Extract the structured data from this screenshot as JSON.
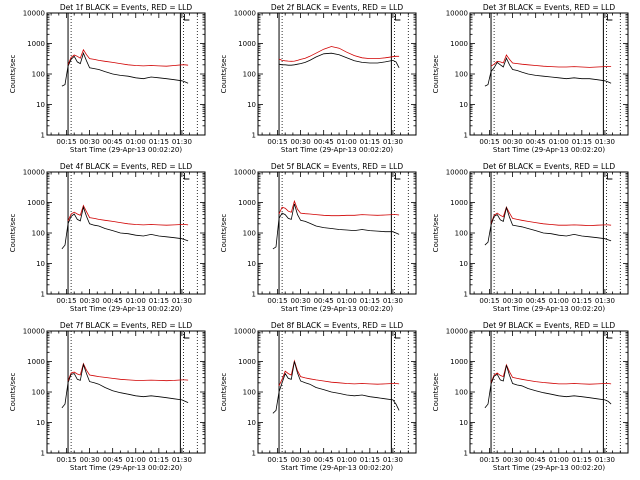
{
  "chart_data": {
    "type": "line",
    "layout": "3x3 grid",
    "yscale": "log",
    "ylim": [
      1,
      10000
    ],
    "yticks": [
      "1",
      "10",
      "100",
      "1000",
      "10000"
    ],
    "ylabel": "Counts/sec",
    "xlabel": "Start Time (29-Apr-13 00:02:20)",
    "xlim": [
      2.33,
      105
    ],
    "xticks": [
      {
        "label": "00:15",
        "minutes": 15
      },
      {
        "label": "00:30",
        "minutes": 30
      },
      {
        "label": "00:45",
        "minutes": 45
      },
      {
        "label": "01:00",
        "minutes": 60
      },
      {
        "label": "01:15",
        "minutes": 75
      },
      {
        "label": "01:30",
        "minutes": 90
      }
    ],
    "vlines_solid": [
      16,
      89
    ],
    "vlines_dotted": [
      18,
      91,
      100
    ],
    "series_colors": {
      "events": "#000000",
      "lld": "#d00000"
    },
    "x_minutes": [
      12,
      14,
      16,
      18,
      20,
      22,
      24,
      26,
      28,
      30,
      33,
      36,
      40,
      45,
      50,
      55,
      60,
      65,
      70,
      75,
      80,
      85,
      90,
      92,
      94
    ],
    "panels": [
      {
        "title": "Det 1f BLACK = Events, RED = LLD",
        "events": [
          40,
          45,
          180,
          300,
          380,
          250,
          220,
          480,
          270,
          160,
          150,
          140,
          120,
          100,
          90,
          85,
          75,
          70,
          80,
          75,
          70,
          65,
          60,
          55,
          50
        ],
        "lld": [
          null,
          null,
          200,
          350,
          420,
          380,
          330,
          620,
          430,
          320,
          300,
          280,
          260,
          240,
          220,
          200,
          190,
          185,
          190,
          185,
          180,
          190,
          200,
          200,
          195
        ]
      },
      {
        "title": "Det 2f BLACK = Events, RED = LLD",
        "events": [
          null,
          null,
          210,
          200,
          200,
          195,
          195,
          200,
          210,
          220,
          240,
          280,
          360,
          460,
          480,
          430,
          340,
          270,
          240,
          230,
          230,
          250,
          280,
          250,
          160
        ],
        "lld": [
          null,
          null,
          310,
          280,
          270,
          265,
          260,
          265,
          280,
          300,
          330,
          380,
          480,
          650,
          800,
          700,
          520,
          400,
          340,
          320,
          320,
          340,
          370,
          380,
          380
        ]
      },
      {
        "title": "Det 3f BLACK = Events, RED = LLD",
        "events": [
          40,
          45,
          120,
          160,
          240,
          200,
          170,
          330,
          200,
          140,
          130,
          115,
          100,
          90,
          85,
          80,
          75,
          70,
          75,
          70,
          70,
          65,
          60,
          55,
          50
        ],
        "lld": [
          null,
          null,
          180,
          210,
          260,
          250,
          230,
          420,
          300,
          230,
          220,
          210,
          200,
          190,
          180,
          175,
          170,
          170,
          175,
          170,
          165,
          170,
          175,
          175,
          175
        ]
      },
      {
        "title": "Det 4f BLACK = Events, RED = LLD",
        "events": [
          30,
          40,
          200,
          350,
          420,
          280,
          250,
          700,
          350,
          200,
          180,
          170,
          140,
          120,
          100,
          95,
          85,
          80,
          90,
          80,
          75,
          70,
          65,
          60,
          55
        ],
        "lld": [
          null,
          null,
          250,
          420,
          480,
          420,
          380,
          800,
          500,
          320,
          300,
          280,
          260,
          240,
          220,
          200,
          190,
          185,
          190,
          185,
          180,
          185,
          190,
          190,
          185
        ]
      },
      {
        "title": "Det 5f BLACK = Events, RED = LLD",
        "events": [
          30,
          35,
          300,
          450,
          400,
          300,
          280,
          900,
          400,
          260,
          240,
          210,
          170,
          150,
          140,
          130,
          125,
          120,
          130,
          120,
          115,
          110,
          110,
          100,
          90
        ],
        "lld": [
          null,
          null,
          420,
          700,
          650,
          520,
          480,
          1100,
          600,
          450,
          430,
          420,
          400,
          380,
          370,
          370,
          380,
          380,
          400,
          390,
          380,
          390,
          400,
          400,
          390
        ]
      },
      {
        "title": "Det 6f BLACK = Events, RED = LLD",
        "events": [
          40,
          50,
          180,
          350,
          400,
          270,
          240,
          680,
          330,
          180,
          170,
          160,
          140,
          120,
          100,
          95,
          85,
          80,
          90,
          80,
          75,
          70,
          65,
          60,
          55
        ],
        "lld": [
          null,
          null,
          200,
          380,
          450,
          380,
          340,
          700,
          450,
          300,
          280,
          260,
          240,
          220,
          200,
          190,
          180,
          180,
          185,
          180,
          175,
          180,
          185,
          185,
          180
        ]
      },
      {
        "title": "Det 7f BLACK = Events, RED = LLD",
        "events": [
          30,
          40,
          200,
          380,
          400,
          260,
          240,
          800,
          400,
          220,
          200,
          180,
          140,
          110,
          95,
          85,
          75,
          70,
          75,
          70,
          65,
          60,
          55,
          50,
          45
        ],
        "lld": [
          null,
          null,
          230,
          420,
          450,
          390,
          360,
          850,
          520,
          360,
          340,
          320,
          300,
          280,
          260,
          250,
          240,
          240,
          245,
          240,
          235,
          240,
          250,
          250,
          245
        ]
      },
      {
        "title": "Det 8f BLACK = Events, RED = LLD",
        "events": [
          20,
          25,
          100,
          200,
          400,
          280,
          260,
          1000,
          420,
          230,
          200,
          180,
          140,
          120,
          100,
          90,
          80,
          75,
          80,
          70,
          65,
          60,
          55,
          40,
          25
        ],
        "lld": [
          null,
          null,
          160,
          260,
          480,
          400,
          360,
          1050,
          500,
          320,
          290,
          270,
          250,
          230,
          210,
          200,
          190,
          185,
          190,
          185,
          180,
          185,
          190,
          190,
          185
        ]
      },
      {
        "title": "Det 9f BLACK = Events, RED = LLD",
        "events": [
          30,
          40,
          180,
          330,
          380,
          250,
          230,
          750,
          350,
          190,
          170,
          160,
          130,
          110,
          95,
          85,
          75,
          70,
          75,
          70,
          65,
          60,
          55,
          50,
          40
        ],
        "lld": [
          null,
          null,
          200,
          360,
          420,
          350,
          320,
          780,
          460,
          300,
          280,
          260,
          240,
          220,
          205,
          195,
          185,
          185,
          190,
          185,
          180,
          185,
          190,
          190,
          185
        ]
      }
    ]
  }
}
